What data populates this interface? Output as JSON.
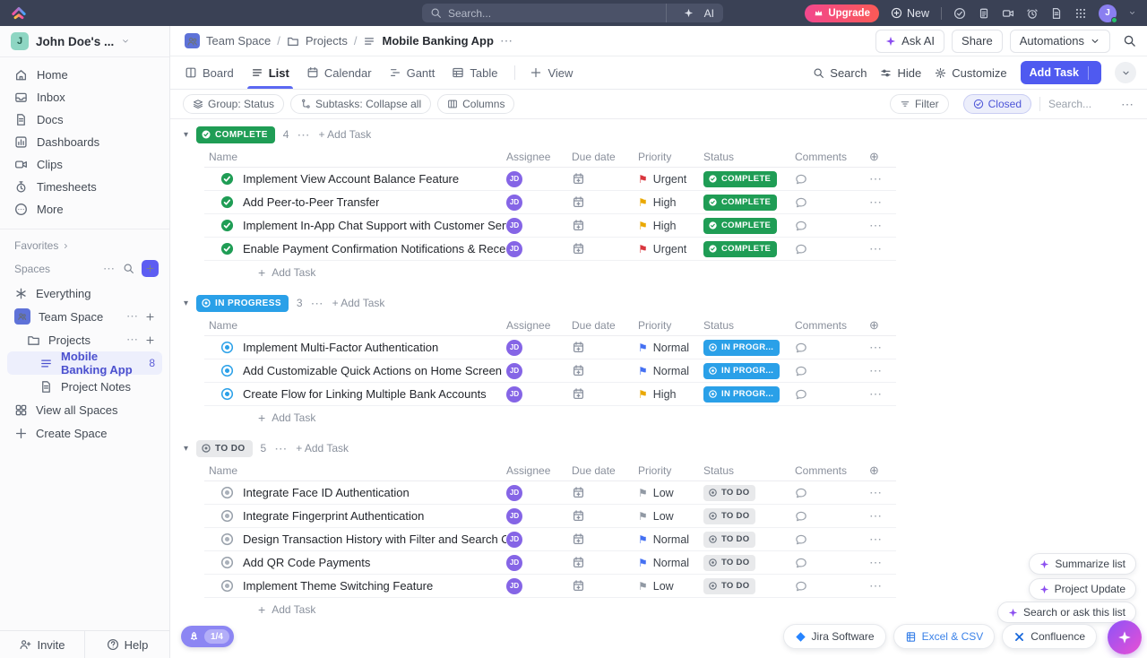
{
  "topbar": {
    "search_placeholder": "Search...",
    "ai": "AI",
    "upgrade": "Upgrade",
    "new": "New",
    "avatar_initial": "J"
  },
  "workspace": {
    "initial": "J",
    "name": "John Doe's ..."
  },
  "sidebar": {
    "nav": [
      {
        "label": "Home",
        "icon": "home"
      },
      {
        "label": "Inbox",
        "icon": "inbox"
      },
      {
        "label": "Docs",
        "icon": "file"
      },
      {
        "label": "Dashboards",
        "icon": "chart"
      },
      {
        "label": "Clips",
        "icon": "video"
      },
      {
        "label": "Timesheets",
        "icon": "stopwatch"
      },
      {
        "label": "More",
        "icon": "morec"
      }
    ],
    "favorites": "Favorites",
    "spaces": "Spaces",
    "everything": "Everything",
    "team_space": "Team Space",
    "projects": "Projects",
    "list_name": "Mobile Banking App",
    "list_count": "8",
    "project_notes": "Project Notes",
    "view_all": "View all Spaces",
    "create_space": "Create Space",
    "invite": "Invite",
    "help": "Help",
    "trial_badge": "1/4"
  },
  "breadcrumb": {
    "team": "Team Space",
    "projects": "Projects",
    "current": "Mobile Banking App"
  },
  "page_actions": {
    "ask_ai": "Ask AI",
    "share": "Share",
    "automations": "Automations"
  },
  "tabs": {
    "board": "Board",
    "list": "List",
    "calendar": "Calendar",
    "gantt": "Gantt",
    "table": "Table",
    "add_view": "View"
  },
  "view_actions": {
    "search": "Search",
    "hide": "Hide",
    "customize": "Customize",
    "add_task": "Add Task"
  },
  "filter_bar": {
    "group": "Group: Status",
    "subtasks": "Subtasks: Collapse all",
    "columns": "Columns",
    "filter": "Filter",
    "closed": "Closed",
    "search_placeholder": "Search..."
  },
  "table": {
    "columns": [
      "Name",
      "Assignee",
      "Due date",
      "Priority",
      "Status",
      "Comments"
    ],
    "add_task": "Add Task"
  },
  "priority_colors": {
    "Urgent": "#d9363e",
    "High": "#eaa800",
    "Normal": "#4470f2",
    "Low": "#9199a4"
  },
  "groups": [
    {
      "name": "COMPLETE",
      "count": "4",
      "type": "complete",
      "badge_bg": "#1f9d55",
      "status_label": "COMPLETE",
      "tasks": [
        {
          "title": "Implement View Account Balance Feature",
          "assignee": "JD",
          "priority": "Urgent"
        },
        {
          "title": "Add Peer-to-Peer Transfer",
          "assignee": "JD",
          "priority": "High"
        },
        {
          "title": "Implement In-App Chat Support with Customer Service",
          "assignee": "JD",
          "priority": "High"
        },
        {
          "title": "Enable Payment Confirmation Notifications & Receipts",
          "assignee": "JD",
          "priority": "Urgent"
        }
      ]
    },
    {
      "name": "IN PROGRESS",
      "count": "3",
      "type": "progress",
      "badge_bg": "#2aa0e8",
      "status_label": "IN PROGR...",
      "tasks": [
        {
          "title": "Implement Multi-Factor Authentication",
          "assignee": "JD",
          "priority": "Normal"
        },
        {
          "title": "Add Customizable Quick Actions on Home Screen",
          "assignee": "JD",
          "priority": "Normal"
        },
        {
          "title": "Create Flow for Linking Multiple Bank Accounts",
          "assignee": "JD",
          "priority": "High"
        }
      ]
    },
    {
      "name": "TO DO",
      "count": "5",
      "type": "todo",
      "badge_bg": "#e8e9eb",
      "status_label": "TO DO",
      "tasks": [
        {
          "title": "Integrate Face ID Authentication",
          "assignee": "JD",
          "priority": "Low"
        },
        {
          "title": "Integrate Fingerprint Authentication",
          "assignee": "JD",
          "priority": "Low"
        },
        {
          "title": "Design Transaction History with Filter and Search Options",
          "assignee": "JD",
          "priority": "Normal"
        },
        {
          "title": "Add QR Code Payments",
          "assignee": "JD",
          "priority": "Normal"
        },
        {
          "title": "Implement Theme Switching Feature",
          "assignee": "JD",
          "priority": "Low"
        }
      ]
    }
  ],
  "ai_actions": {
    "summarize": "Summarize list",
    "project_update": "Project Update",
    "ask_list": "Search or ask this list"
  },
  "integrations": {
    "jira": "Jira Software",
    "excel": "Excel & CSV",
    "confluence": "Confluence"
  }
}
